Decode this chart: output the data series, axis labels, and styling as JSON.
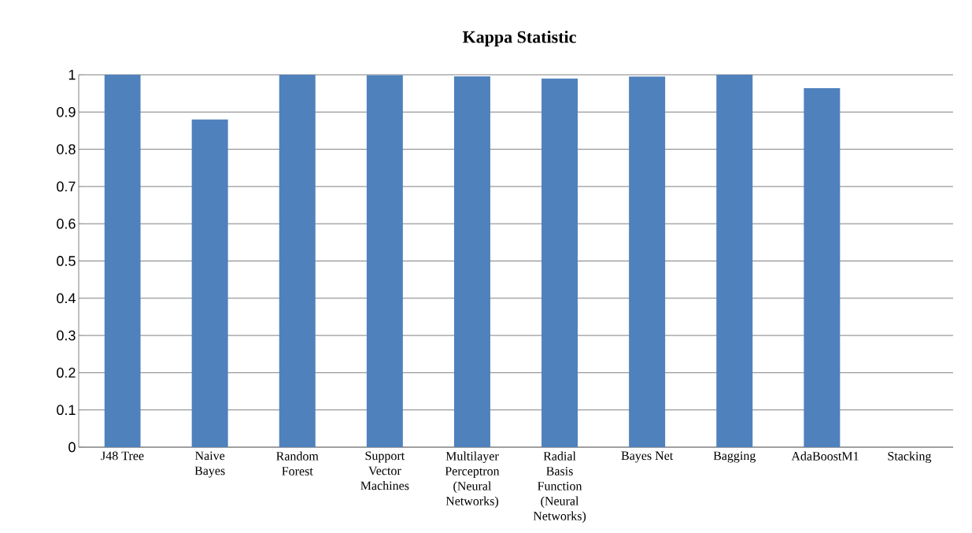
{
  "chart_data": {
    "type": "bar",
    "title": "Kappa Statistic",
    "categories": [
      "J48 Tree",
      "Naive Bayes",
      "Random Forest",
      "Support Vector Machines",
      "Multilayer Perceptron (Neural Networks)",
      "Radial Basis Function (Neural Networks)",
      "Bayes Net",
      "Bagging",
      "AdaBoostM1",
      "Stacking"
    ],
    "values": [
      1,
      0.88,
      1,
      0.999,
      0.996,
      0.99,
      0.995,
      1,
      0.964,
      0
    ],
    "color": "#4f81bd",
    "ylim": [
      0,
      1
    ],
    "yticks": [
      0,
      0.1,
      0.2,
      0.3,
      0.4,
      0.5,
      0.6,
      0.7,
      0.8,
      0.9,
      1
    ],
    "grid": "y"
  }
}
